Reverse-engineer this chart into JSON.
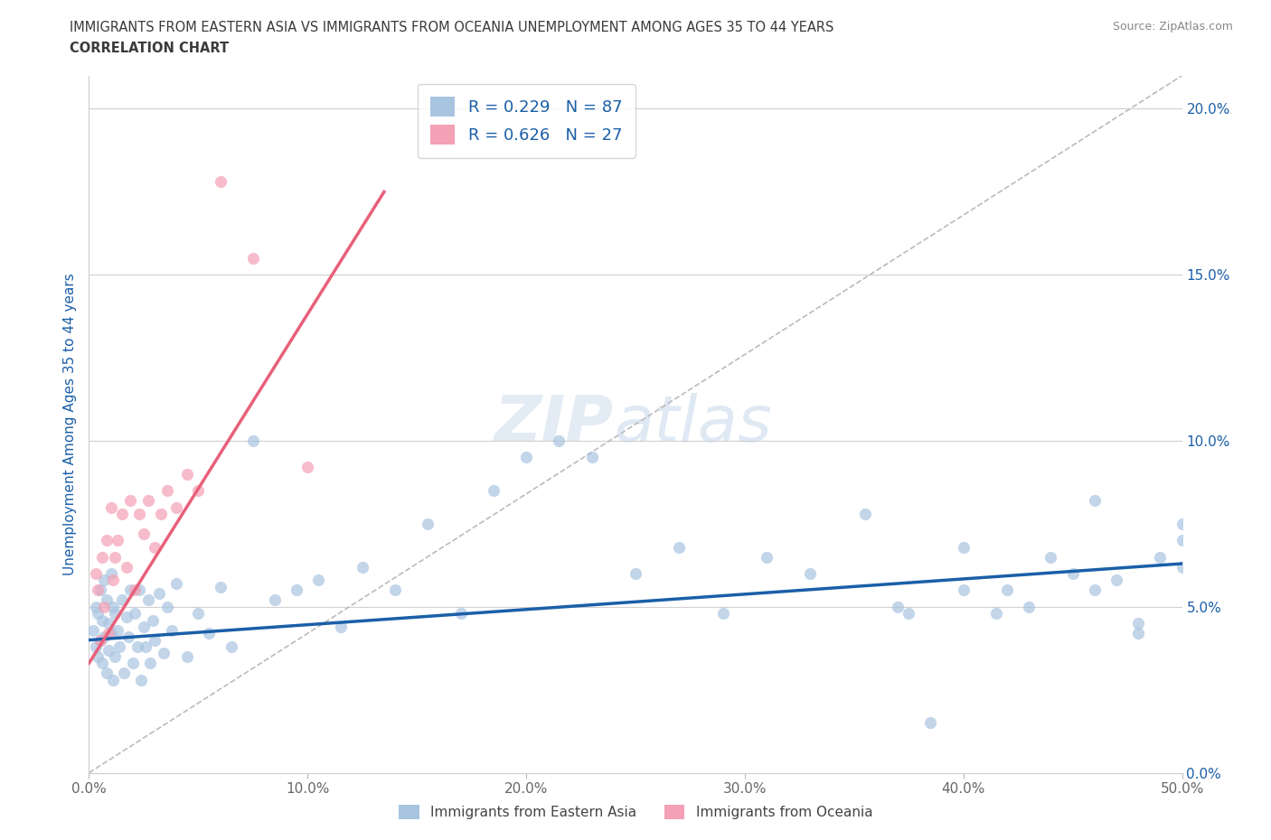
{
  "title_line1": "IMMIGRANTS FROM EASTERN ASIA VS IMMIGRANTS FROM OCEANIA UNEMPLOYMENT AMONG AGES 35 TO 44 YEARS",
  "title_line2": "CORRELATION CHART",
  "source": "Source: ZipAtlas.com",
  "ylabel": "Unemployment Among Ages 35 to 44 years",
  "blue_label": "Immigrants from Eastern Asia",
  "pink_label": "Immigrants from Oceania",
  "blue_R": 0.229,
  "blue_N": 87,
  "pink_R": 0.626,
  "pink_N": 27,
  "blue_color": "#a8c4e0",
  "pink_color": "#f4a0b5",
  "blue_line_color": "#1a5fa8",
  "pink_line_color": "#e8607a",
  "xlim": [
    0.0,
    0.5
  ],
  "ylim": [
    0.0,
    0.21
  ],
  "xticks": [
    0.0,
    0.1,
    0.2,
    0.3,
    0.4,
    0.5
  ],
  "yticks_right": [
    0.0,
    0.05,
    0.1,
    0.15,
    0.2
  ],
  "blue_trend": [
    0.0,
    0.04,
    0.5,
    0.063
  ],
  "pink_trend": [
    0.0,
    0.033,
    0.135,
    0.175
  ],
  "diag_line": [
    0.0,
    0.0,
    0.5,
    0.21
  ],
  "background_color": "#ffffff",
  "grid_color": "#d0d0d0",
  "title_color": "#3a3a3a",
  "axis_label_color": "#1a5fa8",
  "tick_color_right": "#1a5fa8",
  "tick_color_bottom": "#666666",
  "blue_scatter_x": [
    0.002,
    0.003,
    0.003,
    0.004,
    0.004,
    0.005,
    0.005,
    0.006,
    0.006,
    0.007,
    0.007,
    0.008,
    0.008,
    0.009,
    0.009,
    0.01,
    0.01,
    0.011,
    0.011,
    0.012,
    0.012,
    0.013,
    0.014,
    0.015,
    0.016,
    0.017,
    0.018,
    0.019,
    0.02,
    0.021,
    0.022,
    0.023,
    0.024,
    0.025,
    0.026,
    0.027,
    0.028,
    0.029,
    0.03,
    0.032,
    0.034,
    0.036,
    0.038,
    0.04,
    0.045,
    0.05,
    0.055,
    0.06,
    0.065,
    0.075,
    0.085,
    0.095,
    0.105,
    0.115,
    0.125,
    0.14,
    0.155,
    0.17,
    0.185,
    0.2,
    0.215,
    0.23,
    0.25,
    0.27,
    0.29,
    0.31,
    0.33,
    0.355,
    0.375,
    0.4,
    0.42,
    0.44,
    0.46,
    0.48,
    0.5,
    0.5,
    0.5,
    0.49,
    0.48,
    0.47,
    0.46,
    0.45,
    0.43,
    0.415,
    0.4,
    0.385,
    0.37
  ],
  "blue_scatter_y": [
    0.043,
    0.038,
    0.05,
    0.035,
    0.048,
    0.04,
    0.055,
    0.033,
    0.046,
    0.041,
    0.058,
    0.03,
    0.052,
    0.037,
    0.045,
    0.042,
    0.06,
    0.028,
    0.05,
    0.035,
    0.048,
    0.043,
    0.038,
    0.052,
    0.03,
    0.047,
    0.041,
    0.055,
    0.033,
    0.048,
    0.038,
    0.055,
    0.028,
    0.044,
    0.038,
    0.052,
    0.033,
    0.046,
    0.04,
    0.054,
    0.036,
    0.05,
    0.043,
    0.057,
    0.035,
    0.048,
    0.042,
    0.056,
    0.038,
    0.1,
    0.052,
    0.055,
    0.058,
    0.044,
    0.062,
    0.055,
    0.075,
    0.048,
    0.085,
    0.095,
    0.1,
    0.095,
    0.06,
    0.068,
    0.048,
    0.065,
    0.06,
    0.078,
    0.048,
    0.068,
    0.055,
    0.065,
    0.055,
    0.042,
    0.062,
    0.07,
    0.075,
    0.065,
    0.045,
    0.058,
    0.082,
    0.06,
    0.05,
    0.048,
    0.055,
    0.015,
    0.05
  ],
  "pink_scatter_x": [
    0.003,
    0.004,
    0.005,
    0.006,
    0.007,
    0.008,
    0.009,
    0.01,
    0.011,
    0.012,
    0.013,
    0.015,
    0.017,
    0.019,
    0.021,
    0.023,
    0.025,
    0.027,
    0.03,
    0.033,
    0.036,
    0.04,
    0.045,
    0.05,
    0.06,
    0.075,
    0.1
  ],
  "pink_scatter_y": [
    0.06,
    0.055,
    0.04,
    0.065,
    0.05,
    0.07,
    0.042,
    0.08,
    0.058,
    0.065,
    0.07,
    0.078,
    0.062,
    0.082,
    0.055,
    0.078,
    0.072,
    0.082,
    0.068,
    0.078,
    0.085,
    0.08,
    0.09,
    0.085,
    0.178,
    0.155,
    0.092
  ]
}
